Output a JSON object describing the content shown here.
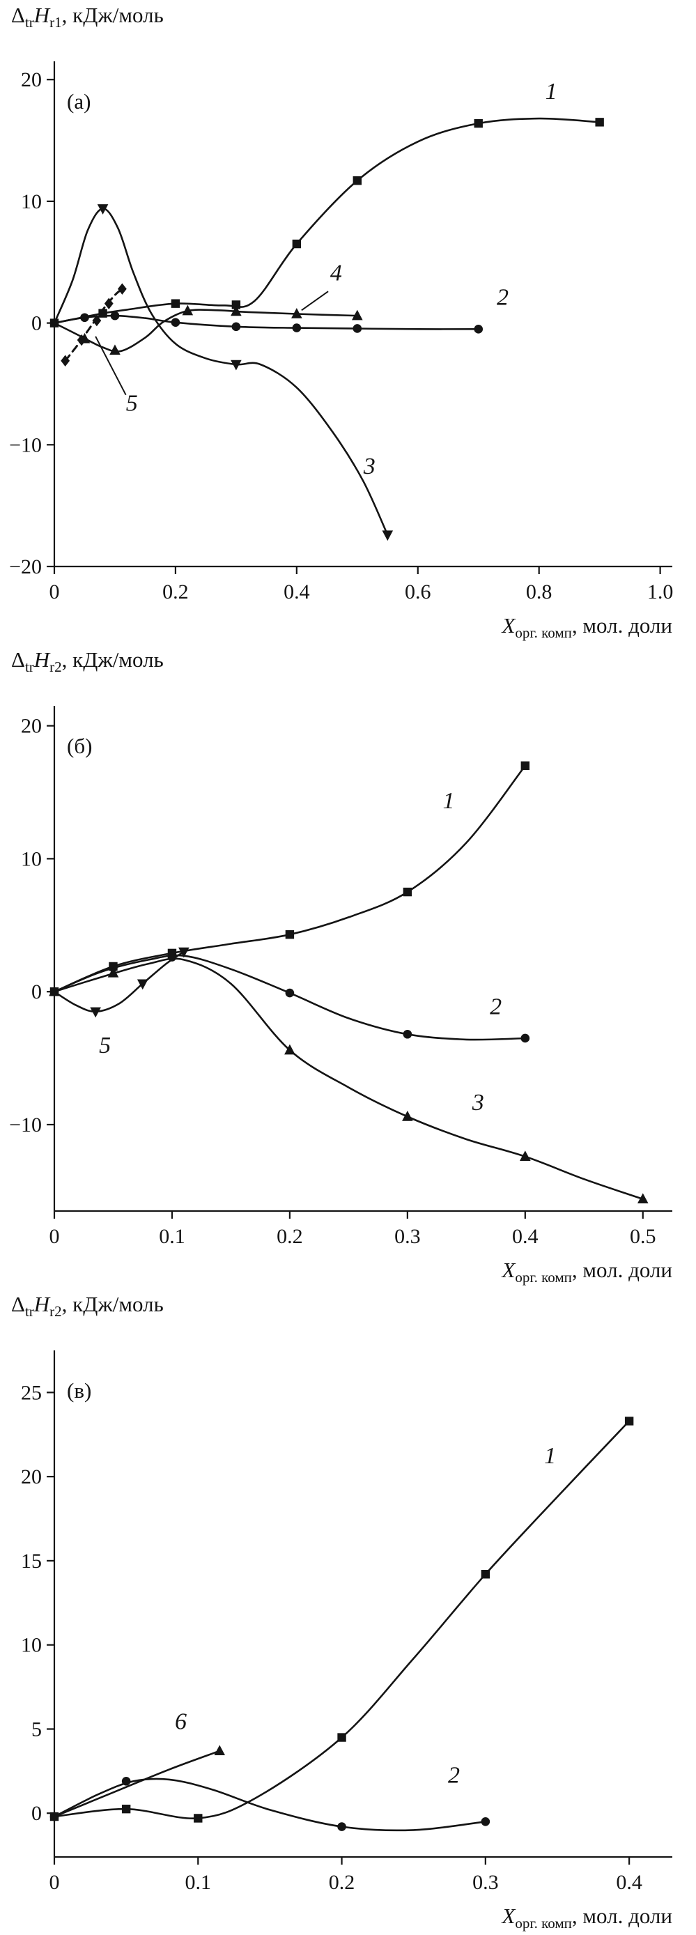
{
  "figure": {
    "ink": "#141414",
    "background": "#ffffff"
  },
  "chart_data": [
    {
      "type": "line",
      "panel_label": "(а)",
      "y_title": {
        "delta": "Δ",
        "delta_sub": "tr",
        "symbol": "H",
        "symbol_sub": "r1",
        "units": ", кДж/моль"
      },
      "x_title": {
        "symbol": "X",
        "sub": "орг. комп",
        "units": ", мол. доли"
      },
      "xlim": [
        0,
        1.02
      ],
      "ylim": [
        -20,
        21.5
      ],
      "x_ticks": [
        {
          "v": 0,
          "label": "0"
        },
        {
          "v": 0.2,
          "label": "0.2"
        },
        {
          "v": 0.4,
          "label": "0.4"
        },
        {
          "v": 0.6,
          "label": "0.6"
        },
        {
          "v": 0.8,
          "label": "0.8"
        },
        {
          "v": 1.0,
          "label": "1.0"
        }
      ],
      "y_ticks": [
        {
          "v": 20,
          "label": "20"
        },
        {
          "v": 10,
          "label": "10"
        },
        {
          "v": 0,
          "label": "0"
        },
        {
          "v": -10,
          "label": "−10"
        },
        {
          "v": -20,
          "label": "−20"
        }
      ],
      "series": [
        {
          "name": "curve-1",
          "label": "1",
          "marker": "square",
          "label_pos": [
            0.82,
            18.4
          ],
          "curve": [
            [
              0,
              0
            ],
            [
              0.04,
              0.4
            ],
            [
              0.08,
              0.8
            ],
            [
              0.12,
              1.1
            ],
            [
              0.2,
              1.6
            ],
            [
              0.28,
              1.45
            ],
            [
              0.33,
              1.8
            ],
            [
              0.4,
              6.5
            ],
            [
              0.5,
              11.7
            ],
            [
              0.6,
              14.9
            ],
            [
              0.7,
              16.4
            ],
            [
              0.8,
              16.8
            ],
            [
              0.9,
              16.5
            ]
          ],
          "points": [
            [
              0,
              0
            ],
            [
              0.08,
              0.8
            ],
            [
              0.2,
              1.6
            ],
            [
              0.3,
              1.5
            ],
            [
              0.4,
              6.5
            ],
            [
              0.5,
              11.7
            ],
            [
              0.7,
              16.4
            ],
            [
              0.9,
              16.5
            ]
          ]
        },
        {
          "name": "curve-2",
          "label": "2",
          "marker": "circle",
          "label_pos": [
            0.74,
            1.5
          ],
          "curve": [
            [
              0,
              0
            ],
            [
              0.05,
              0.45
            ],
            [
              0.1,
              0.6
            ],
            [
              0.15,
              0.4
            ],
            [
              0.2,
              0.05
            ],
            [
              0.3,
              -0.3
            ],
            [
              0.4,
              -0.4
            ],
            [
              0.5,
              -0.45
            ],
            [
              0.6,
              -0.5
            ],
            [
              0.7,
              -0.5
            ]
          ],
          "points": [
            [
              0,
              0
            ],
            [
              0.05,
              0.45
            ],
            [
              0.1,
              0.6
            ],
            [
              0.2,
              0.05
            ],
            [
              0.3,
              -0.3
            ],
            [
              0.4,
              -0.4
            ],
            [
              0.5,
              -0.45
            ],
            [
              0.7,
              -0.5
            ]
          ]
        },
        {
          "name": "curve-3",
          "label": "3",
          "marker": "triangle-down",
          "label_pos": [
            0.52,
            -12.4
          ],
          "curve": [
            [
              0,
              0
            ],
            [
              0.03,
              3.5
            ],
            [
              0.055,
              7.6
            ],
            [
              0.08,
              9.4
            ],
            [
              0.105,
              7.8
            ],
            [
              0.13,
              4.2
            ],
            [
              0.16,
              0.8
            ],
            [
              0.2,
              -1.7
            ],
            [
              0.25,
              -2.9
            ],
            [
              0.3,
              -3.4
            ],
            [
              0.34,
              -3.4
            ],
            [
              0.4,
              -5.3
            ],
            [
              0.46,
              -9.0
            ],
            [
              0.51,
              -13.0
            ],
            [
              0.55,
              -17.4
            ]
          ],
          "points": [
            [
              0.08,
              9.4
            ],
            [
              0.3,
              -3.4
            ],
            [
              0.55,
              -17.4
            ]
          ]
        },
        {
          "name": "curve-4",
          "label": "4",
          "marker": "triangle-up",
          "label_pos": [
            0.465,
            3.5
          ],
          "leader": [
            [
              0.452,
              2.6
            ],
            [
              0.408,
              1.05
            ]
          ],
          "curve": [
            [
              0,
              0
            ],
            [
              0.04,
              -1.0
            ],
            [
              0.08,
              -2.0
            ],
            [
              0.11,
              -2.3
            ],
            [
              0.15,
              -1.2
            ],
            [
              0.18,
              0.1
            ],
            [
              0.22,
              1.0
            ],
            [
              0.27,
              1.05
            ],
            [
              0.32,
              0.9
            ],
            [
              0.4,
              0.75
            ],
            [
              0.5,
              0.6
            ]
          ],
          "points": [
            [
              0.05,
              -1.3
            ],
            [
              0.1,
              -2.25
            ],
            [
              0.22,
              1.0
            ],
            [
              0.3,
              0.95
            ],
            [
              0.4,
              0.75
            ],
            [
              0.5,
              0.6
            ]
          ]
        },
        {
          "name": "curve-5",
          "label": "5",
          "marker": "diamond",
          "label_pos": [
            0.128,
            -7.2
          ],
          "dash": "10 7",
          "width": 3,
          "leader": [
            [
              0.118,
              -5.9
            ],
            [
              0.068,
              -1.1
            ]
          ],
          "curve": [
            [
              0.018,
              -3.1
            ],
            [
              0.04,
              -1.7
            ],
            [
              0.06,
              -0.3
            ],
            [
              0.08,
              1.1
            ],
            [
              0.1,
              2.3
            ],
            [
              0.112,
              2.8
            ]
          ],
          "points": [
            [
              0.018,
              -3.1
            ],
            [
              0.045,
              -1.4
            ],
            [
              0.07,
              0.2
            ],
            [
              0.09,
              1.6
            ],
            [
              0.112,
              2.8
            ]
          ]
        }
      ]
    },
    {
      "type": "line",
      "panel_label": "(б)",
      "y_title": {
        "delta": "Δ",
        "delta_sub": "tr",
        "symbol": "H",
        "symbol_sub": "r2",
        "units": ", кДж/моль"
      },
      "x_title": {
        "symbol": "X",
        "sub": "орг. комп",
        "units": ", мол. доли"
      },
      "xlim": [
        0,
        0.525
      ],
      "ylim": [
        -16.5,
        21.5
      ],
      "x_ticks": [
        {
          "v": 0,
          "label": "0"
        },
        {
          "v": 0.1,
          "label": "0.1"
        },
        {
          "v": 0.2,
          "label": "0.2"
        },
        {
          "v": 0.3,
          "label": "0.3"
        },
        {
          "v": 0.4,
          "label": "0.4"
        },
        {
          "v": 0.5,
          "label": "0.5"
        }
      ],
      "y_ticks": [
        {
          "v": 20,
          "label": "20"
        },
        {
          "v": 10,
          "label": "10"
        },
        {
          "v": 0,
          "label": "0"
        },
        {
          "v": -10,
          "label": "−10"
        }
      ],
      "series": [
        {
          "name": "curve-1",
          "label": "1",
          "marker": "square",
          "label_pos": [
            0.335,
            13.8
          ],
          "curve": [
            [
              0,
              0
            ],
            [
              0.05,
              1.9
            ],
            [
              0.1,
              2.9
            ],
            [
              0.15,
              3.6
            ],
            [
              0.2,
              4.3
            ],
            [
              0.25,
              5.6
            ],
            [
              0.3,
              7.5
            ],
            [
              0.35,
              11.2
            ],
            [
              0.4,
              17.0
            ]
          ],
          "points": [
            [
              0,
              0
            ],
            [
              0.05,
              1.9
            ],
            [
              0.1,
              2.9
            ],
            [
              0.2,
              4.3
            ],
            [
              0.3,
              7.5
            ],
            [
              0.4,
              17.0
            ]
          ]
        },
        {
          "name": "curve-2",
          "label": "2",
          "marker": "circle",
          "label_pos": [
            0.375,
            -1.7
          ],
          "curve": [
            [
              0,
              0
            ],
            [
              0.04,
              1.5
            ],
            [
              0.08,
              2.4
            ],
            [
              0.11,
              2.7
            ],
            [
              0.15,
              1.7
            ],
            [
              0.2,
              -0.1
            ],
            [
              0.25,
              -2.0
            ],
            [
              0.3,
              -3.2
            ],
            [
              0.35,
              -3.6
            ],
            [
              0.4,
              -3.5
            ]
          ],
          "points": [
            [
              0,
              0
            ],
            [
              0.05,
              1.8
            ],
            [
              0.1,
              2.6
            ],
            [
              0.2,
              -0.1
            ],
            [
              0.3,
              -3.2
            ],
            [
              0.4,
              -3.5
            ]
          ]
        },
        {
          "name": "curve-3",
          "label": "3",
          "marker": "triangle-up",
          "label_pos": [
            0.36,
            -8.9
          ],
          "curve": [
            [
              0,
              0
            ],
            [
              0.04,
              1.1
            ],
            [
              0.08,
              2.1
            ],
            [
              0.11,
              2.4
            ],
            [
              0.15,
              0.6
            ],
            [
              0.2,
              -4.4
            ],
            [
              0.25,
              -7.2
            ],
            [
              0.3,
              -9.4
            ],
            [
              0.35,
              -11.1
            ],
            [
              0.4,
              -12.4
            ],
            [
              0.45,
              -14.1
            ],
            [
              0.5,
              -15.6
            ]
          ],
          "points": [
            [
              0,
              0
            ],
            [
              0.05,
              1.4
            ],
            [
              0.2,
              -4.4
            ],
            [
              0.3,
              -9.4
            ],
            [
              0.4,
              -12.4
            ],
            [
              0.5,
              -15.6
            ]
          ]
        },
        {
          "name": "curve-5",
          "label": "5",
          "marker": "triangle-down",
          "label_pos": [
            0.043,
            -4.6
          ],
          "curve": [
            [
              0,
              0
            ],
            [
              0.018,
              -1.0
            ],
            [
              0.035,
              -1.5
            ],
            [
              0.055,
              -0.9
            ],
            [
              0.075,
              0.6
            ],
            [
              0.095,
              2.1
            ],
            [
              0.11,
              3.0
            ]
          ],
          "points": [
            [
              0.035,
              -1.5
            ],
            [
              0.075,
              0.6
            ],
            [
              0.11,
              3.0
            ]
          ]
        }
      ]
    },
    {
      "type": "line",
      "panel_label": "(в)",
      "y_title": {
        "delta": "Δ",
        "delta_sub": "tr",
        "symbol": "H",
        "symbol_sub": "r2",
        "units": ", кДж/моль"
      },
      "x_title": {
        "symbol": "X",
        "sub": "орг. комп",
        "units": ", мол. доли"
      },
      "xlim": [
        0,
        0.43
      ],
      "ylim": [
        -2.6,
        27.5
      ],
      "x_ticks": [
        {
          "v": 0,
          "label": "0"
        },
        {
          "v": 0.1,
          "label": "0.1"
        },
        {
          "v": 0.2,
          "label": "0.2"
        },
        {
          "v": 0.3,
          "label": "0.3"
        },
        {
          "v": 0.4,
          "label": "0.4"
        }
      ],
      "y_ticks": [
        {
          "v": 25,
          "label": "25"
        },
        {
          "v": 20,
          "label": "20"
        },
        {
          "v": 15,
          "label": "15"
        },
        {
          "v": 10,
          "label": "10"
        },
        {
          "v": 5,
          "label": "5"
        },
        {
          "v": 0,
          "label": "0"
        }
      ],
      "series": [
        {
          "name": "curve-1",
          "label": "1",
          "marker": "square",
          "label_pos": [
            0.345,
            20.8
          ],
          "curve": [
            [
              0,
              -0.2
            ],
            [
              0.05,
              0.25
            ],
            [
              0.1,
              -0.3
            ],
            [
              0.14,
              0.9
            ],
            [
              0.2,
              4.5
            ],
            [
              0.25,
              9.2
            ],
            [
              0.3,
              14.2
            ],
            [
              0.35,
              18.8
            ],
            [
              0.4,
              23.3
            ]
          ],
          "points": [
            [
              0,
              -0.2
            ],
            [
              0.05,
              0.25
            ],
            [
              0.1,
              -0.3
            ],
            [
              0.2,
              4.5
            ],
            [
              0.3,
              14.2
            ],
            [
              0.4,
              23.3
            ]
          ]
        },
        {
          "name": "curve-2",
          "label": "2",
          "marker": "circle",
          "label_pos": [
            0.278,
            1.8
          ],
          "curve": [
            [
              0,
              -0.2
            ],
            [
              0.03,
              1.1
            ],
            [
              0.055,
              1.9
            ],
            [
              0.08,
              2.0
            ],
            [
              0.11,
              1.4
            ],
            [
              0.15,
              0.2
            ],
            [
              0.2,
              -0.8
            ],
            [
              0.25,
              -1.0
            ],
            [
              0.3,
              -0.5
            ]
          ],
          "points": [
            [
              0,
              -0.2
            ],
            [
              0.05,
              1.9
            ],
            [
              0.2,
              -0.8
            ],
            [
              0.3,
              -0.5
            ]
          ]
        },
        {
          "name": "curve-6",
          "label": "6",
          "marker": "triangle-up",
          "label_pos": [
            0.088,
            5.0
          ],
          "curve": [
            [
              0,
              -0.2
            ],
            [
              0.04,
              1.2
            ],
            [
              0.08,
              2.6
            ],
            [
              0.115,
              3.7
            ]
          ],
          "points": [
            [
              0.115,
              3.7
            ]
          ]
        }
      ]
    }
  ]
}
